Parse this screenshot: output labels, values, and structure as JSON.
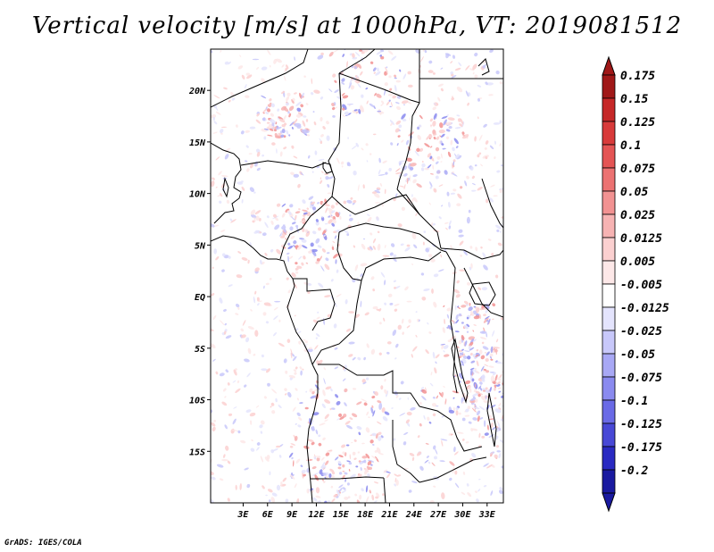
{
  "title": "Vertical velocity [m/s] at 1000hPa, VT: 2019081512",
  "credit": "GrADS: IGES/COLA",
  "colors": {
    "border": "#000000",
    "background": "#ffffff"
  },
  "map": {
    "lon_range": [
      -1,
      35
    ],
    "lat_range": [
      -20,
      24
    ],
    "lat_ticks": [
      {
        "value": 20,
        "label": "20N"
      },
      {
        "value": 15,
        "label": "15N"
      },
      {
        "value": 10,
        "label": "10N"
      },
      {
        "value": 5,
        "label": "5N"
      },
      {
        "value": 0,
        "label": "EQ"
      },
      {
        "value": -5,
        "label": "5S"
      },
      {
        "value": -10,
        "label": "10S"
      },
      {
        "value": -15,
        "label": "15S"
      }
    ],
    "lon_ticks": [
      {
        "value": 3,
        "label": "3E"
      },
      {
        "value": 6,
        "label": "6E"
      },
      {
        "value": 9,
        "label": "9E"
      },
      {
        "value": 12,
        "label": "12E"
      },
      {
        "value": 15,
        "label": "15E"
      },
      {
        "value": 18,
        "label": "18E"
      },
      {
        "value": 21,
        "label": "21E"
      },
      {
        "value": 24,
        "label": "24E"
      },
      {
        "value": 27,
        "label": "27E"
      },
      {
        "value": 30,
        "label": "30E"
      },
      {
        "value": 33,
        "label": "33E"
      }
    ]
  },
  "colorbar": {
    "levels": [
      {
        "label": "0.175",
        "color": "#a01818"
      },
      {
        "label": "0.15",
        "color": "#c62828"
      },
      {
        "label": "0.125",
        "color": "#d83a3a"
      },
      {
        "label": "0.1",
        "color": "#e45454"
      },
      {
        "label": "0.075",
        "color": "#ec7272"
      },
      {
        "label": "0.05",
        "color": "#f29292"
      },
      {
        "label": "0.025",
        "color": "#f7b3b3"
      },
      {
        "label": "0.0125",
        "color": "#fbd0d0"
      },
      {
        "label": "0.005",
        "color": "#fde8e8"
      },
      {
        "label": "-0.005",
        "color": "#ffffff"
      },
      {
        "label": "-0.0125",
        "color": "#e4e4fd"
      },
      {
        "label": "-0.025",
        "color": "#c8c8fa"
      },
      {
        "label": "-0.05",
        "color": "#a8a8f5"
      },
      {
        "label": "-0.075",
        "color": "#8a8aef"
      },
      {
        "label": "-0.1",
        "color": "#6a6ae6"
      },
      {
        "label": "-0.125",
        "color": "#4848d6"
      },
      {
        "label": "-0.175",
        "color": "#2a2ac2"
      },
      {
        "label": "-0.2",
        "color": "#1a1aa0"
      }
    ],
    "max_color": "#a01818",
    "min_color": "#1a1aa0"
  }
}
